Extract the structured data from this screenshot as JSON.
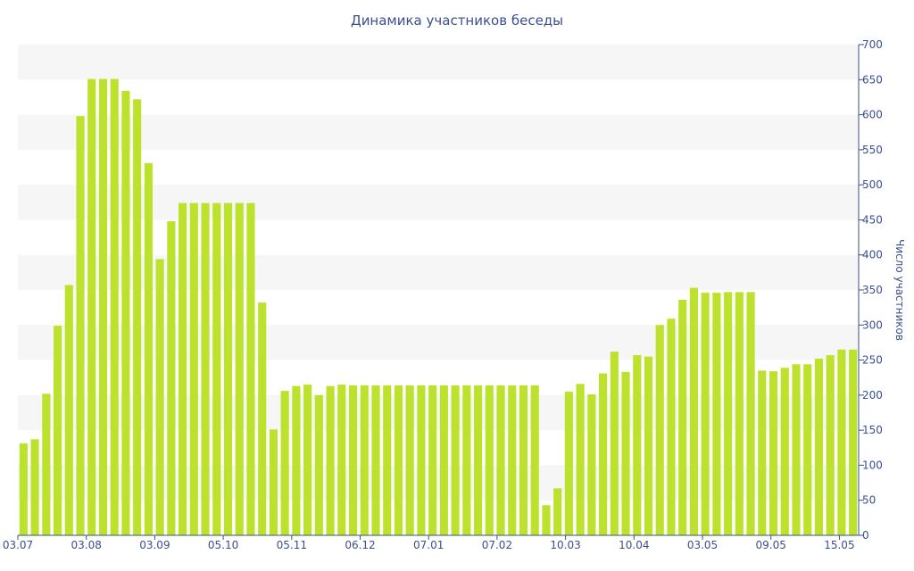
{
  "chart_data": {
    "type": "bar",
    "title": "Динамика участников беседы",
    "xlabel": "",
    "ylabel": "Число участников",
    "ylim": [
      0,
      700
    ],
    "yticks": [
      0,
      50,
      100,
      150,
      200,
      250,
      300,
      350,
      400,
      450,
      500,
      550,
      600,
      650,
      700
    ],
    "grid": "alternating horizontal bands",
    "x_tick_labels": [
      "03.07",
      "03.08",
      "03.09",
      "05.10",
      "05.11",
      "06.12",
      "07.01",
      "07.02",
      "10.03",
      "10.04",
      "03.05",
      "09.05",
      "15.05"
    ],
    "values": [
      131,
      137,
      202,
      299,
      357,
      598,
      651,
      651,
      651,
      634,
      622,
      531,
      394,
      448,
      474,
      474,
      474,
      474,
      474,
      474,
      474,
      332,
      151,
      206,
      213,
      215,
      200,
      213,
      215,
      214,
      214,
      214,
      214,
      214,
      214,
      214,
      214,
      214,
      214,
      214,
      214,
      214,
      214,
      214,
      214,
      214,
      43,
      67,
      205,
      216,
      201,
      231,
      262,
      233,
      257,
      255,
      300,
      309,
      336,
      353,
      346,
      346,
      347,
      347,
      347,
      235,
      234,
      239,
      244,
      244,
      252,
      257,
      265,
      265
    ],
    "colors": {
      "bar": "#bde22e",
      "text": "#3a4f8c",
      "band": "#f6f6f6"
    }
  }
}
